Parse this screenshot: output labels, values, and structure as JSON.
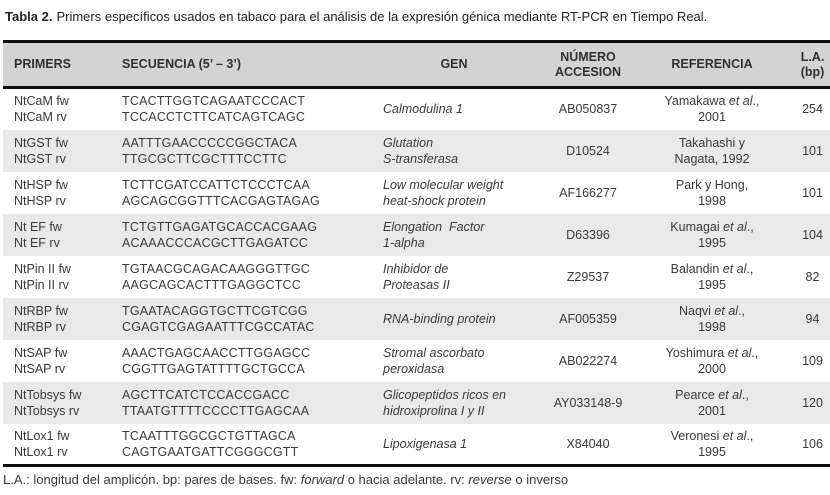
{
  "caption": {
    "label": "Tabla 2.",
    "text": "Primers específicos usados en tabaco para el análisis de la expresión génica mediante RT-PCR en Tiempo Real."
  },
  "table": {
    "headers": [
      {
        "id": "primers",
        "lines": [
          "PRIMERS"
        ]
      },
      {
        "id": "secuencia",
        "lines": [
          "SECUENCIA (5’ – 3’)"
        ]
      },
      {
        "id": "gen",
        "lines": [
          "GEN"
        ]
      },
      {
        "id": "numero-accesion",
        "lines": [
          "NÚMERO",
          "ACCESION"
        ]
      },
      {
        "id": "referencia",
        "lines": [
          "REFERENCIA"
        ]
      },
      {
        "id": "longitud-amplicon",
        "lines": [
          "L.A.",
          "(bp)"
        ]
      }
    ],
    "rows": [
      {
        "primers": [
          "NtCaM fw",
          "NtCaM rv"
        ],
        "sequences": [
          "TCACTTGGTCAGAATCCCACT",
          "TCCACCTCTTCATCAGTCAGC"
        ],
        "gene": [
          "Calmodulina 1"
        ],
        "accession": "AB050837",
        "reference": [
          "Yamakawa *et al*.,",
          "2001"
        ],
        "amplicon": "254"
      },
      {
        "primers": [
          "NtGST fw",
          "NtGST rv"
        ],
        "sequences": [
          "AATTTGAACCCCCGGCTACA",
          "TTGCGCTTCGCTTTCCTTC"
        ],
        "gene": [
          "Glutation",
          "S-transferasa"
        ],
        "accession": "D10524",
        "reference": [
          "Takahashi y",
          "Nagata, 1992"
        ],
        "amplicon": "101"
      },
      {
        "primers": [
          "NtHSP fw",
          "NtHSP rv"
        ],
        "sequences": [
          "TCTTCGATCCATTCTCCCTCAA",
          "AGCAGCGGTTTCACGAGTAGAG"
        ],
        "gene": [
          "Low molecular weight",
          "heat-shock protein"
        ],
        "accession": "AF166277",
        "reference": [
          "Park y Hong,",
          "1998"
        ],
        "amplicon": "101"
      },
      {
        "primers": [
          "Nt EF fw",
          "Nt EF rv"
        ],
        "sequences": [
          "TCTGTTGAGATGCACCACGAAG",
          "ACAAACCCACGCTTGAGATCC"
        ],
        "gene": [
          "Elongation  Factor",
          "1-alpha"
        ],
        "accession": "D63396",
        "reference": [
          "Kumagai *et al*.,",
          "1995"
        ],
        "amplicon": "104"
      },
      {
        "primers": [
          "NtPin II fw",
          "NtPin II rv"
        ],
        "sequences": [
          "TGTAACGCAGACAAGGGTTGC",
          "AAGCAGCACTTTGAGGCTCC"
        ],
        "gene": [
          "Inhibidor de",
          "Proteasas II"
        ],
        "accession": "Z29537",
        "reference": [
          "Balandin *et al*.,",
          "1995"
        ],
        "amplicon": "82"
      },
      {
        "primers": [
          "NtRBP fw",
          "NtRBP rv"
        ],
        "sequences": [
          "TGAATACAGGTGCTTCGTCGG",
          "CGAGTCGAGAATTTCGCCATAC"
        ],
        "gene": [
          "RNA-binding protein"
        ],
        "accession": "AF005359",
        "reference": [
          "Naqvi *et al*.,",
          "1998"
        ],
        "amplicon": "94"
      },
      {
        "primers": [
          "NtSAP fw",
          "NtSAP rv"
        ],
        "sequences": [
          "AAACTGAGCAACCTTGGAGCC",
          "CGGTTGAGTATTTTGCTGCCA"
        ],
        "gene": [
          "Stromal ascorbato",
          "peroxidasa"
        ],
        "accession": "AB022274",
        "reference": [
          "Yoshimura *et al*.,",
          "2000"
        ],
        "amplicon": "109"
      },
      {
        "primers": [
          "NtTobsys fw",
          "NtTobsys rv"
        ],
        "sequences": [
          "AGCTTCATCTCCACCGACC",
          "TTAATGTTTTCCCCTTGAGCAA"
        ],
        "gene": [
          "Glicopeptidos ricos en",
          "hidroxiprolina I y II"
        ],
        "accession": "AY033148-9",
        "reference": [
          "Pearce *et al*.,",
          "2001"
        ],
        "amplicon": "120"
      },
      {
        "primers": [
          "NtLox1 fw",
          "NtLox1 rv"
        ],
        "sequences": [
          "TCAATTTGGCGCTGTTAGCA",
          "CAGTGAATGATTCGGGCGTT"
        ],
        "gene": [
          "Lipoxigenasa 1"
        ],
        "accession": "X84040",
        "reference": [
          "Veronesi *et al*.,",
          "1995"
        ],
        "amplicon": "106"
      }
    ]
  },
  "footnote": "L.A.: longitud del amplicón. bp: pares de bases. fw: *forward* o hacia adelante. rv: *reverse* o inverso"
}
